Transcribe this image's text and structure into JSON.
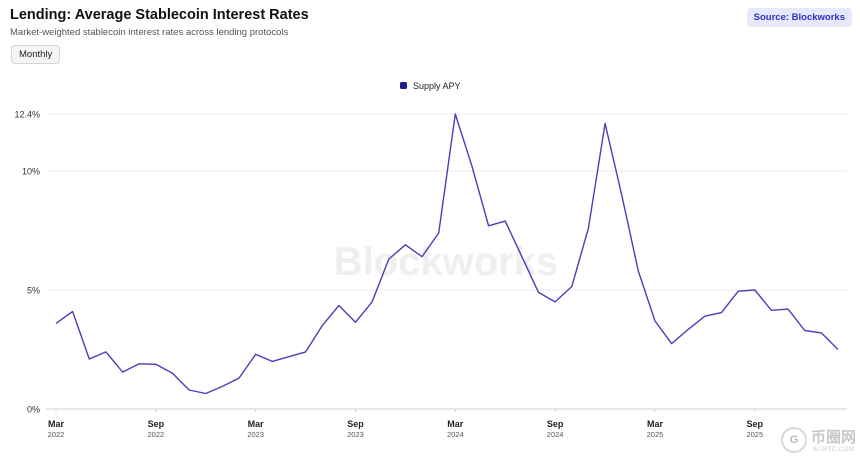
{
  "header": {
    "title": "Lending: Average Stablecoin Interest Rates",
    "subtitle": "Market-weighted stablecoin interest rates across lending protocols",
    "period_button": "Monthly",
    "source_badge": "Source: Blockworks"
  },
  "watermark": "Blockworks",
  "corner_logo": {
    "mark": "G",
    "big": "币圈网",
    "small": "ALIBTC.COM"
  },
  "colors": {
    "line": "#4a3fb8",
    "legend_marker": "#1d1f8f",
    "grid": "#ececec",
    "axis": "#cfcfcf"
  },
  "chart_data": {
    "type": "line",
    "title": "Lending: Average Stablecoin Interest Rates",
    "subtitle": "Market-weighted stablecoin interest rates across lending protocols",
    "xlabel": "",
    "ylabel": "",
    "ylim": [
      0,
      12.4
    ],
    "y_ticks": [
      {
        "value": 0,
        "label": "0%"
      },
      {
        "value": 5,
        "label": "5%"
      },
      {
        "value": 10,
        "label": "10%"
      },
      {
        "value": 12.4,
        "label": "12.4%"
      }
    ],
    "x_ticks": [
      {
        "date": "2022-03",
        "month": "Mar",
        "year": "2022"
      },
      {
        "date": "2022-09",
        "month": "Sep",
        "year": "2022"
      },
      {
        "date": "2023-03",
        "month": "Mar",
        "year": "2023"
      },
      {
        "date": "2023-09",
        "month": "Sep",
        "year": "2023"
      },
      {
        "date": "2024-03",
        "month": "Mar",
        "year": "2024"
      },
      {
        "date": "2024-09",
        "month": "Sep",
        "year": "2024"
      },
      {
        "date": "2025-03",
        "month": "Mar",
        "year": "2025"
      },
      {
        "date": "2025-09",
        "month": "Sep",
        "year": "2025"
      }
    ],
    "legend": {
      "position": "top-center"
    },
    "grid": true,
    "series": [
      {
        "name": "Supply APY",
        "x": [
          "2022-03",
          "2022-04",
          "2022-05",
          "2022-06",
          "2022-07",
          "2022-08",
          "2022-09",
          "2022-10",
          "2022-11",
          "2022-12",
          "2023-01",
          "2023-02",
          "2023-03",
          "2023-04",
          "2023-05",
          "2023-06",
          "2023-07",
          "2023-08",
          "2023-09",
          "2023-10",
          "2023-11",
          "2023-12",
          "2024-01",
          "2024-02",
          "2024-03",
          "2024-04",
          "2024-05",
          "2024-06",
          "2024-07",
          "2024-08",
          "2024-09",
          "2024-10",
          "2024-11",
          "2024-12",
          "2025-01",
          "2025-02",
          "2025-03",
          "2025-04",
          "2025-05",
          "2025-06",
          "2025-07",
          "2025-08",
          "2025-09",
          "2025-10",
          "2025-11",
          "2025-12",
          "2026-01",
          "2026-02"
        ],
        "values": [
          3.6,
          4.1,
          2.1,
          2.4,
          1.55,
          1.9,
          1.88,
          1.5,
          0.8,
          0.65,
          0.95,
          1.3,
          2.3,
          2.0,
          2.2,
          2.4,
          3.5,
          4.35,
          3.65,
          4.5,
          6.3,
          6.9,
          6.4,
          7.4,
          12.4,
          10.2,
          7.7,
          7.9,
          6.4,
          4.9,
          4.5,
          5.15,
          7.6,
          12.0,
          9.0,
          5.8,
          3.7,
          2.75,
          3.35,
          3.9,
          4.05,
          4.95,
          5.0,
          4.15,
          4.2,
          3.3,
          3.2,
          2.5
        ]
      }
    ]
  }
}
